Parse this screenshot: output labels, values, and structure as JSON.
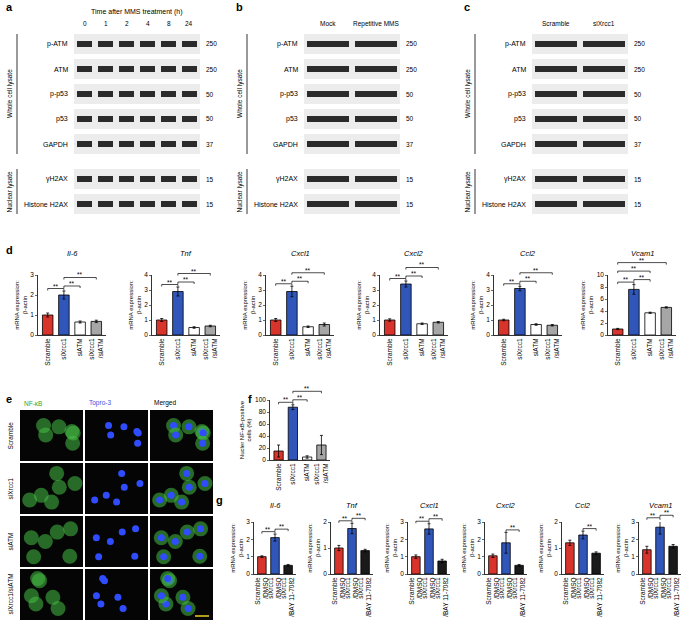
{
  "panel_labels": [
    "a",
    "b",
    "c",
    "d",
    "e",
    "f",
    "g"
  ],
  "blots": [
    {
      "header": "Time after MMS treatment (h)",
      "lanes": [
        "0",
        "1",
        "2",
        "4",
        "8",
        "24"
      ],
      "groups": [
        {
          "name": "Whole cell lysate",
          "rows": [
            {
              "label": "p-ATM",
              "mw": "250"
            },
            {
              "label": "ATM",
              "mw": "250"
            },
            {
              "label": "p-p53",
              "mw": "50"
            },
            {
              "label": "p53",
              "mw": "50"
            },
            {
              "label": "GAPDH",
              "mw": "37"
            }
          ]
        },
        {
          "name": "Nuclear lysate",
          "rows": [
            {
              "label": "γH2AX",
              "mw": "15"
            },
            {
              "label": "Histone H2AX",
              "mw": "15"
            }
          ]
        }
      ]
    },
    {
      "lanes": [
        "Mock",
        "Repetitive MMS"
      ],
      "groups": [
        {
          "name": "Whole cell lysate",
          "rows": [
            {
              "label": "p-ATM",
              "mw": "250"
            },
            {
              "label": "ATM",
              "mw": "250"
            },
            {
              "label": "p-p53",
              "mw": "50"
            },
            {
              "label": "p53",
              "mw": "50"
            },
            {
              "label": "GAPDH",
              "mw": "37"
            }
          ]
        },
        {
          "name": "Nuclear lysate",
          "rows": [
            {
              "label": "γH2AX",
              "mw": "15"
            },
            {
              "label": "Histone H2AX",
              "mw": "15"
            }
          ]
        }
      ]
    },
    {
      "lanes": [
        "Scramble",
        "siXrcc1"
      ],
      "groups": [
        {
          "name": "Whole cell lysate",
          "rows": [
            {
              "label": "p-ATM",
              "mw": "250"
            },
            {
              "label": "ATM",
              "mw": "250"
            },
            {
              "label": "p-p53",
              "mw": "50"
            },
            {
              "label": "p53",
              "mw": "50"
            },
            {
              "label": "GAPDH",
              "mw": "37"
            }
          ]
        },
        {
          "name": "Nuclear lysate",
          "rows": [
            {
              "label": "γH2AX",
              "mw": "15"
            },
            {
              "label": "Histone H2AX",
              "mw": "15"
            }
          ]
        }
      ]
    }
  ],
  "micrographs": {
    "columns": [
      "NF-κB",
      "Topro-3",
      "Merged"
    ],
    "rows": [
      "Scramble",
      "siXrcc1",
      "siATM",
      "siXrcc1/siATM"
    ]
  },
  "chart_data": [
    {
      "type": "bar",
      "title": "Il-6",
      "categories": [
        "Scramble",
        "siXrcc1",
        "siATM",
        "siXrcc1 /siATM"
      ],
      "values": [
        1.0,
        2.0,
        0.65,
        0.68
      ],
      "errors": [
        0.1,
        0.2,
        0.05,
        0.06
      ],
      "colors": [
        "#d9342b",
        "#2f56b8",
        "#ffffff",
        "#a6a6a6"
      ],
      "ylabel": "mRNA expression: β-actin",
      "ylim": [
        0,
        3
      ],
      "yticks": [
        0,
        1,
        2,
        3
      ],
      "grid": false,
      "significance": [
        {
          "from": 0,
          "to": 1,
          "label": "**"
        },
        {
          "from": 1,
          "to": 2,
          "label": "**"
        },
        {
          "from": 1,
          "to": 3,
          "label": "**"
        }
      ]
    },
    {
      "type": "bar",
      "title": "Tnf",
      "categories": [
        "Scramble",
        "siXrcc1",
        "siATM",
        "siXrcc1 /siATM"
      ],
      "values": [
        1.0,
        2.9,
        0.5,
        0.6
      ],
      "errors": [
        0.1,
        0.3,
        0.05,
        0.05
      ],
      "colors": [
        "#d9342b",
        "#2f56b8",
        "#ffffff",
        "#a6a6a6"
      ],
      "ylabel": "mRNA expression: β-actin",
      "ylim": [
        0,
        4
      ],
      "yticks": [
        0,
        1,
        2,
        3,
        4
      ],
      "grid": false,
      "significance": [
        {
          "from": 0,
          "to": 1,
          "label": "**"
        },
        {
          "from": 1,
          "to": 2,
          "label": "**"
        },
        {
          "from": 1,
          "to": 3,
          "label": "**"
        }
      ]
    },
    {
      "type": "bar",
      "title": "Cxcl1",
      "categories": [
        "Scramble",
        "siXrcc1",
        "siATM",
        "siXrcc1 /siATM"
      ],
      "values": [
        1.0,
        2.9,
        0.55,
        0.7
      ],
      "errors": [
        0.1,
        0.35,
        0.05,
        0.1
      ],
      "colors": [
        "#d9342b",
        "#2f56b8",
        "#ffffff",
        "#a6a6a6"
      ],
      "ylabel": "mRNA expression: β-actin",
      "ylim": [
        0,
        4
      ],
      "yticks": [
        0,
        1,
        2,
        3,
        4
      ],
      "grid": false,
      "significance": [
        {
          "from": 0,
          "to": 1,
          "label": "**"
        },
        {
          "from": 1,
          "to": 2,
          "label": "**"
        },
        {
          "from": 1,
          "to": 3,
          "label": "**"
        }
      ]
    },
    {
      "type": "bar",
      "title": "Cxcl2",
      "categories": [
        "Scramble",
        "siXrcc1",
        "siATM",
        "siXrcc1 /siATM"
      ],
      "values": [
        1.0,
        3.4,
        0.75,
        0.85
      ],
      "errors": [
        0.08,
        0.2,
        0.05,
        0.05
      ],
      "colors": [
        "#d9342b",
        "#2f56b8",
        "#ffffff",
        "#a6a6a6"
      ],
      "ylabel": "mRNA expression: β-actin",
      "ylim": [
        0,
        4
      ],
      "yticks": [
        0,
        1,
        2,
        3,
        4
      ],
      "grid": false,
      "significance": [
        {
          "from": 0,
          "to": 1,
          "label": "**"
        },
        {
          "from": 1,
          "to": 2,
          "label": "**"
        },
        {
          "from": 1,
          "to": 3,
          "label": "**"
        }
      ]
    },
    {
      "type": "bar",
      "title": "Ccl2",
      "categories": [
        "Scramble",
        "siXrcc1",
        "siATM",
        "siXrcc1 /siATM"
      ],
      "values": [
        1.0,
        3.1,
        0.7,
        0.65
      ],
      "errors": [
        0.05,
        0.15,
        0.05,
        0.05
      ],
      "colors": [
        "#d9342b",
        "#2f56b8",
        "#ffffff",
        "#a6a6a6"
      ],
      "ylabel": "mRNA expression: β-actin",
      "ylim": [
        0,
        4
      ],
      "yticks": [
        0,
        1,
        2,
        3,
        4
      ],
      "grid": false,
      "significance": [
        {
          "from": 0,
          "to": 1,
          "label": "**"
        },
        {
          "from": 1,
          "to": 2,
          "label": "**"
        },
        {
          "from": 1,
          "to": 3,
          "label": "**"
        }
      ]
    },
    {
      "type": "bar",
      "title": "Vcam1",
      "categories": [
        "Scramble",
        "siXrcc1",
        "siATM",
        "siXrcc1 /siATM"
      ],
      "values": [
        1.0,
        7.6,
        3.7,
        4.6
      ],
      "errors": [
        0.1,
        0.8,
        0.1,
        0.1
      ],
      "colors": [
        "#d9342b",
        "#2f56b8",
        "#ffffff",
        "#a6a6a6"
      ],
      "ylabel": "mRNA expression: β-actin",
      "ylim": [
        0,
        10
      ],
      "yticks": [
        0,
        2,
        4,
        6,
        8,
        10
      ],
      "grid": false,
      "significance": [
        {
          "from": 0,
          "to": 1,
          "label": "**"
        },
        {
          "from": 1,
          "to": 2,
          "label": "**"
        },
        {
          "from": 0,
          "to": 2,
          "label": "**"
        },
        {
          "from": 0,
          "to": 3,
          "label": "**"
        }
      ]
    },
    {
      "type": "bar",
      "categories": [
        "Scramble",
        "siXrcc1",
        "siATM",
        "siXrcc1 /siATM"
      ],
      "values": [
        15,
        88,
        5,
        25
      ],
      "errors": [
        10,
        4,
        2,
        16
      ],
      "colors": [
        "#d9342b",
        "#2f56b8",
        "#ffffff",
        "#a6a6a6"
      ],
      "ylabel": "Nucler NF-κB-positive cells (%)",
      "ylim": [
        0,
        100
      ],
      "yticks": [
        0,
        20,
        40,
        60,
        80,
        100
      ],
      "grid": false,
      "significance": [
        {
          "from": 0,
          "to": 1,
          "label": "**"
        },
        {
          "from": 1,
          "to": 2,
          "label": "**"
        },
        {
          "from": 1,
          "to": 3,
          "label": "**"
        }
      ]
    },
    {
      "type": "bar",
      "title": "Il-6",
      "categories": [
        "Scramble /DMSO",
        "siXrcc1 /DMSO",
        "siXrcc1 /BAY 11-7082"
      ],
      "values": [
        1.0,
        2.1,
        0.5
      ],
      "errors": [
        0.05,
        0.2,
        0.05
      ],
      "colors": [
        "#d9342b",
        "#2f56b8",
        "#1a1a1a"
      ],
      "ylabel": "mRNA expression: β-actin",
      "ylim": [
        0,
        3
      ],
      "yticks": [
        0,
        1,
        2,
        3
      ],
      "grid": false,
      "significance": [
        {
          "from": 0,
          "to": 1,
          "label": "**"
        },
        {
          "from": 1,
          "to": 2,
          "label": "**"
        }
      ]
    },
    {
      "type": "bar",
      "title": "Tnf",
      "categories": [
        "Scramble /DMSO",
        "siXrcc1 /DMSO",
        "siXrcc1 /BAY 11-7082"
      ],
      "values": [
        1.0,
        1.75,
        0.9
      ],
      "errors": [
        0.1,
        0.2,
        0.05
      ],
      "colors": [
        "#d9342b",
        "#2f56b8",
        "#1a1a1a"
      ],
      "ylabel": "mRNA expression: β-actin",
      "ylim": [
        0,
        2
      ],
      "yticks": [
        0,
        1,
        2
      ],
      "grid": false,
      "significance": [
        {
          "from": 0,
          "to": 1,
          "label": "**"
        },
        {
          "from": 1,
          "to": 2,
          "label": "**"
        }
      ]
    },
    {
      "type": "bar",
      "title": "Cxcl1",
      "categories": [
        "Scramble /DMSO",
        "siXrcc1 /DMSO",
        "siXrcc1 /BAY 11-7082"
      ],
      "values": [
        1.0,
        2.6,
        0.75
      ],
      "errors": [
        0.1,
        0.3,
        0.1
      ],
      "colors": [
        "#d9342b",
        "#2f56b8",
        "#1a1a1a"
      ],
      "ylabel": "mRNA expression: β-actin",
      "ylim": [
        0,
        3
      ],
      "yticks": [
        0,
        1,
        2,
        3
      ],
      "grid": false,
      "significance": [
        {
          "from": 0,
          "to": 1,
          "label": "**"
        },
        {
          "from": 1,
          "to": 2,
          "label": "**"
        }
      ]
    },
    {
      "type": "bar",
      "title": "Cxcl2",
      "categories": [
        "Scramble /DMSO",
        "siXrcc1 /DMSO",
        "siXrcc1 /BAY 11-7082"
      ],
      "values": [
        1.05,
        1.8,
        0.5
      ],
      "errors": [
        0.1,
        0.6,
        0.05
      ],
      "colors": [
        "#d9342b",
        "#2f56b8",
        "#1a1a1a"
      ],
      "ylabel": "mRNA expression: β-actin",
      "ylim": [
        0,
        3
      ],
      "yticks": [
        0,
        1,
        2,
        3
      ],
      "grid": false,
      "significance": [
        {
          "from": 1,
          "to": 2,
          "label": "**"
        }
      ]
    },
    {
      "type": "bar",
      "title": "Ccl2",
      "categories": [
        "Scramble /DMSO",
        "siXrcc1 /DMSO",
        "siXrcc1 /BAY 11-7082"
      ],
      "values": [
        1.2,
        1.5,
        0.8
      ],
      "errors": [
        0.1,
        0.15,
        0.05
      ],
      "colors": [
        "#d9342b",
        "#2f56b8",
        "#1a1a1a"
      ],
      "ylabel": "mRNA expression: β-actin",
      "ylim": [
        0,
        2
      ],
      "yticks": [
        0,
        1,
        2
      ],
      "grid": false,
      "significance": [
        {
          "from": 1,
          "to": 2,
          "label": "**"
        }
      ]
    },
    {
      "type": "bar",
      "title": "Vcam1",
      "categories": [
        "Scramble /DMSO",
        "siXrcc1 /DMSO",
        "siXrcc1 /BAY 11-7082"
      ],
      "values": [
        1.4,
        2.7,
        1.6
      ],
      "errors": [
        0.2,
        0.4,
        0.1
      ],
      "colors": [
        "#d9342b",
        "#2f56b8",
        "#1a1a1a"
      ],
      "ylabel": "mRNA expression: β-actin",
      "ylim": [
        0,
        3
      ],
      "yticks": [
        0,
        1,
        2,
        3
      ],
      "grid": false,
      "significance": [
        {
          "from": 0,
          "to": 1,
          "label": "**"
        },
        {
          "from": 1,
          "to": 2,
          "label": "**"
        }
      ]
    }
  ]
}
